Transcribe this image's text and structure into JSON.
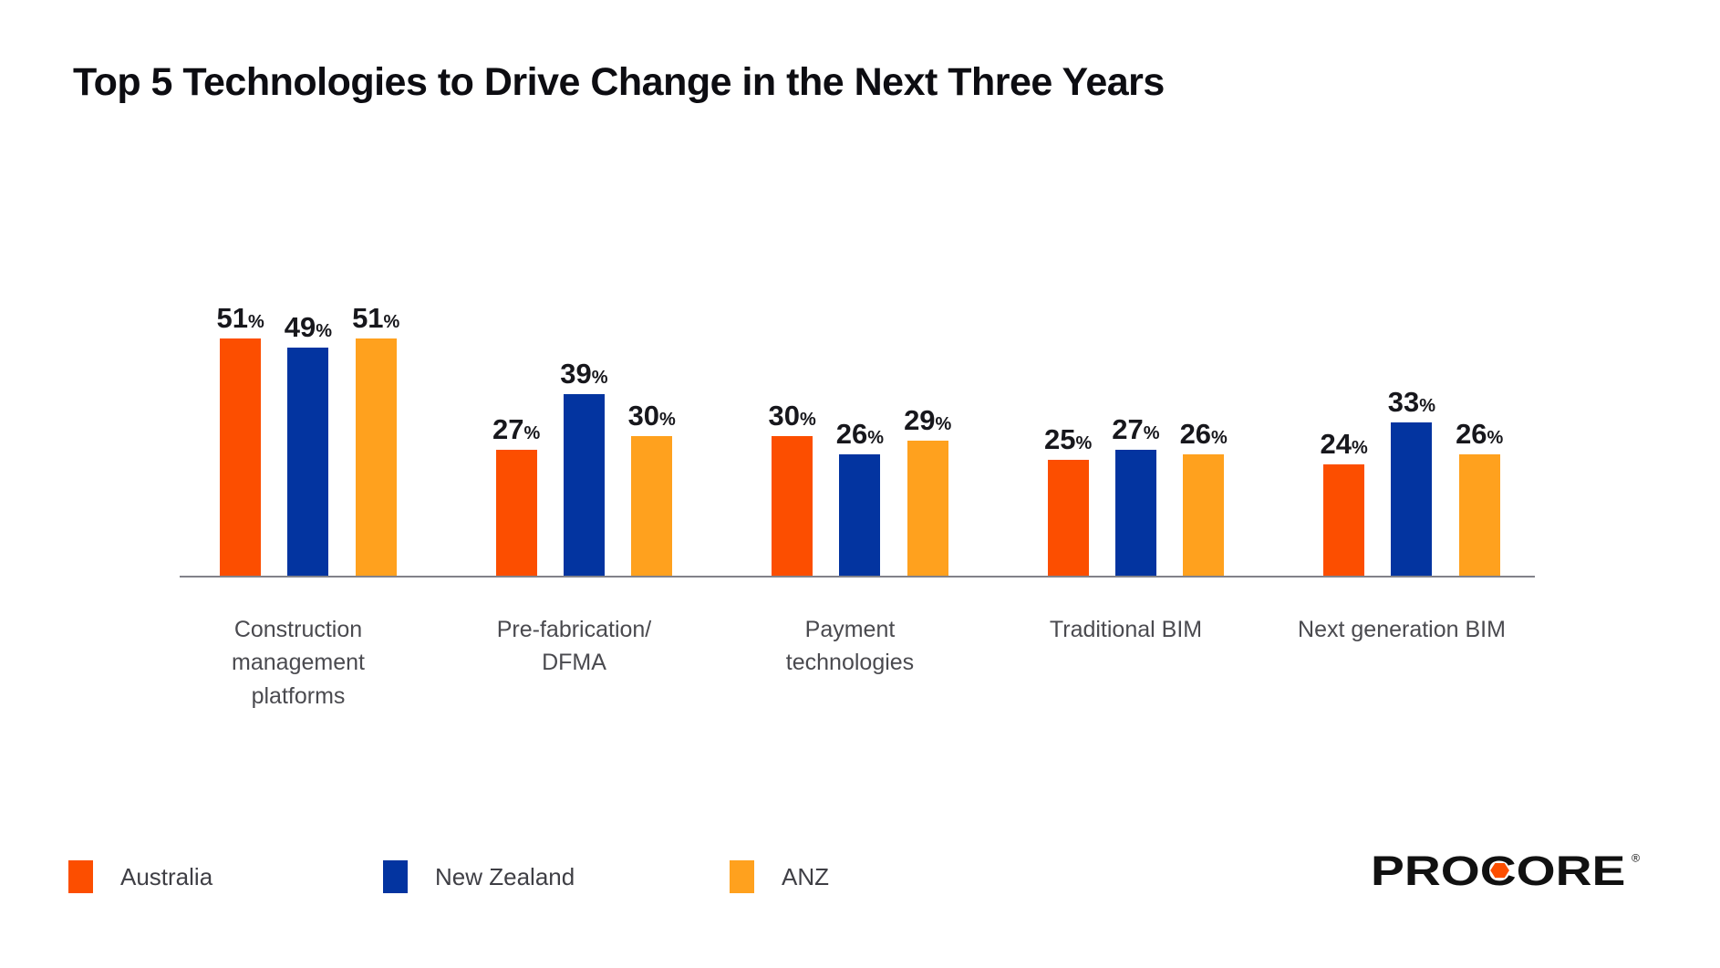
{
  "title": "Top 5 Technologies to Drive Change in the Next Three Years",
  "chart_data": {
    "type": "bar",
    "title": "Top 5 Technologies to Drive Change in the Next Three Years",
    "categories": [
      "Construction\nmanagement\nplatforms",
      "Pre-fabrication/\nDFMA",
      "Payment\ntechnologies",
      "Traditional BIM",
      "Next generation BIM"
    ],
    "series": [
      {
        "name": "Australia",
        "color": "#FC4E00",
        "values": [
          51,
          27,
          30,
          25,
          24
        ]
      },
      {
        "name": "New Zealand",
        "color": "#0334A0",
        "values": [
          49,
          39,
          26,
          27,
          33
        ]
      },
      {
        "name": "ANZ",
        "color": "#FFA11E",
        "values": [
          51,
          30,
          29,
          26,
          26
        ]
      }
    ],
    "unit": "%",
    "value_labels": true,
    "xlabel": "",
    "ylabel": "",
    "ylim": [
      0,
      55
    ],
    "grid": false,
    "legend_position": "bottom-left"
  },
  "branding": {
    "logo_text": "PROCORE",
    "registered_mark": "®",
    "logo_color": "#111111",
    "logo_accent": "#FC4E00"
  }
}
